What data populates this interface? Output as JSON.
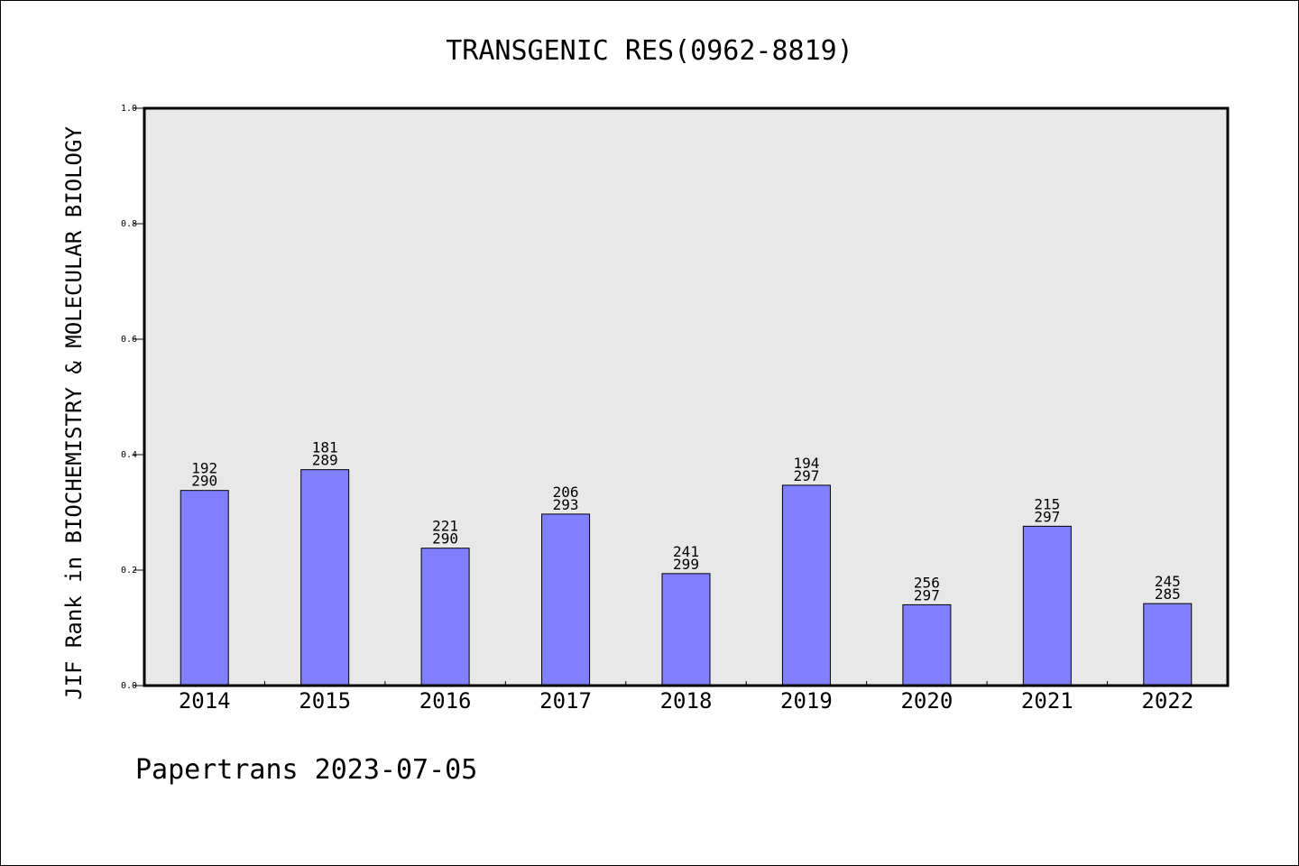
{
  "chart_data": {
    "type": "bar",
    "title": "TRANSGENIC RES(0962-8819)",
    "xlabel": "",
    "ylabel": "JIF Rank in BIOCHEMISTRY & MOLECULAR BIOLOGY",
    "ylim": [
      0,
      1.0
    ],
    "yticks": [
      "0.0",
      "0.2",
      "0.4",
      "0.6",
      "0.8",
      "1.0"
    ],
    "categories": [
      "2014",
      "2015",
      "2016",
      "2017",
      "2018",
      "2019",
      "2020",
      "2021",
      "2022"
    ],
    "values": [
      0.338,
      0.374,
      0.238,
      0.297,
      0.194,
      0.347,
      0.14,
      0.276,
      0.142
    ],
    "rank_labels": [
      [
        "192",
        "290"
      ],
      [
        "181",
        "289"
      ],
      [
        "221",
        "290"
      ],
      [
        "206",
        "293"
      ],
      [
        "241",
        "299"
      ],
      [
        "194",
        "297"
      ],
      [
        "256",
        "297"
      ],
      [
        "215",
        "297"
      ],
      [
        "245",
        "285"
      ]
    ],
    "grid": false,
    "colors": {
      "bar": "#8080ff",
      "plot_bg": "#e8e8e8"
    }
  },
  "footer": "Papertrans 2023-07-05"
}
